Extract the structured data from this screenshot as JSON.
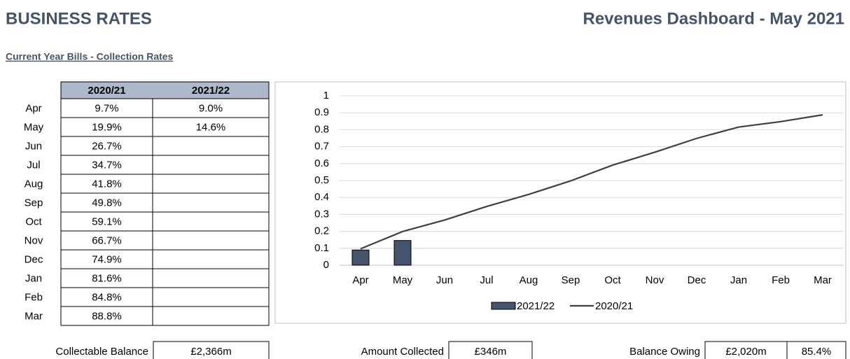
{
  "header": {
    "title": "BUSINESS RATES",
    "dashboard": "Revenues Dashboard - May 2021",
    "subtitle": "Current Year Bills - Collection Rates"
  },
  "table": {
    "columns": [
      "2020/21",
      "2021/22"
    ],
    "rows": [
      [
        "9.7%",
        "9.0%"
      ],
      [
        "19.9%",
        "14.6%"
      ],
      [
        "26.7%"
      ],
      [
        "34.7%"
      ],
      [
        "41.8%"
      ],
      [
        "49.8%"
      ],
      [
        "59.1%"
      ],
      [
        "66.7%"
      ],
      [
        "74.9%"
      ],
      [
        "81.6%"
      ],
      [
        "84.8%"
      ],
      [
        "88.8%"
      ]
    ]
  },
  "chart_data": {
    "type": "combo",
    "categories": [
      "Apr",
      "May",
      "Jun",
      "Jul",
      "Aug",
      "Sep",
      "Oct",
      "Nov",
      "Dec",
      "Jan",
      "Feb",
      "Mar"
    ],
    "series": [
      {
        "name": "2021/22",
        "type": "bar",
        "color": "#44546a",
        "values": [
          0.09,
          0.146,
          null,
          null,
          null,
          null,
          null,
          null,
          null,
          null,
          null,
          null
        ]
      },
      {
        "name": "2020/21",
        "type": "line",
        "color": "#404040",
        "values": [
          0.097,
          0.199,
          0.267,
          0.347,
          0.418,
          0.498,
          0.591,
          0.667,
          0.749,
          0.816,
          0.848,
          0.888
        ]
      }
    ],
    "ylim": [
      0,
      1
    ],
    "yticks": [
      0,
      0.1,
      0.2,
      0.3,
      0.4,
      0.5,
      0.6,
      0.7,
      0.8,
      0.9,
      1
    ],
    "grid": true,
    "legend": "bottom"
  },
  "summary": [
    {
      "label": "Collectable Balance",
      "values": [
        "£2,366m"
      ]
    },
    {
      "label": "Amount Collected",
      "values": [
        "£346m"
      ]
    },
    {
      "label": "Balance Owing",
      "values": [
        "£2,020m",
        "85.4%"
      ]
    }
  ]
}
